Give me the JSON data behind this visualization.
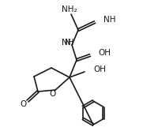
{
  "bg_color": "#ffffff",
  "line_color": "#1a1a1a",
  "line_width": 1.2,
  "font_size": 7.5,
  "label_NH2": "NH₂",
  "label_NH": "NH",
  "label_N": "N",
  "label_O": "O",
  "label_OH": "OH",
  "label_H": "H"
}
